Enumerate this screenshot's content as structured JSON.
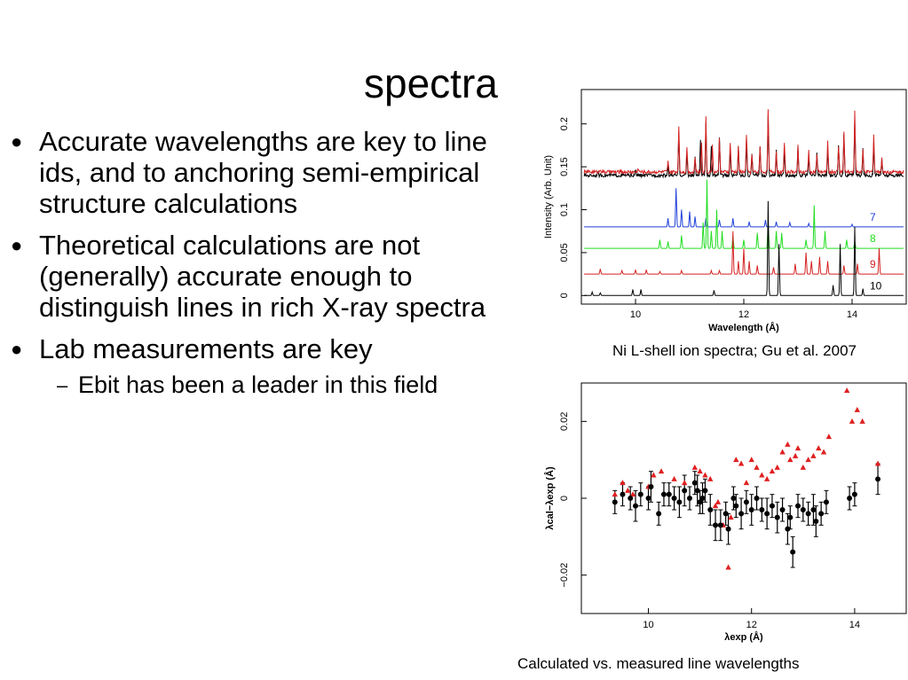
{
  "slide": {
    "title": "spectra",
    "bullets": [
      {
        "text": "Accurate wavelengths are key to line ids, and to anchoring semi-empirical structure calculations"
      },
      {
        "text": "Theoretical calculations are not (generally) accurate enough to distinguish lines in rich X-ray spectra"
      },
      {
        "text": "Lab measurements are key"
      }
    ],
    "sub_bullets": [
      {
        "text": "Ebit has been a leader in this field"
      }
    ],
    "captions": {
      "top": "Ni L-shell ion spectra; Gu et al. 2007",
      "bottom": "Calculated vs. measured line wavelengths"
    }
  },
  "chart_data": [
    {
      "type": "line",
      "xlabel": "Wavelength (Å)",
      "ylabel": "Intensity (Arb. Unit)",
      "xlim": [
        9,
        15
      ],
      "ylim": [
        -0.01,
        0.24
      ],
      "xticks": [
        10,
        12,
        14
      ],
      "yticks": [
        0,
        0.05,
        0.1,
        0.15,
        0.2
      ],
      "series": [
        {
          "name": "7",
          "color": "#1f3fd8",
          "baseline": 0.08,
          "peaks": [
            [
              10.6,
              0.01
            ],
            [
              10.75,
              0.045
            ],
            [
              10.85,
              0.02
            ],
            [
              11.0,
              0.018
            ],
            [
              11.1,
              0.012
            ],
            [
              11.3,
              0.01
            ],
            [
              11.55,
              0.008
            ],
            [
              11.8,
              0.01
            ],
            [
              12.1,
              0.006
            ],
            [
              12.4,
              0.008
            ],
            [
              12.6,
              0.006
            ],
            [
              12.85,
              0.005
            ],
            [
              13.2,
              0.004
            ],
            [
              14.0,
              0.003
            ]
          ]
        },
        {
          "name": "8",
          "color": "#22dd22",
          "baseline": 0.055,
          "peaks": [
            [
              10.45,
              0.01
            ],
            [
              10.6,
              0.008
            ],
            [
              10.85,
              0.015
            ],
            [
              11.25,
              0.03
            ],
            [
              11.32,
              0.08
            ],
            [
              11.4,
              0.02
            ],
            [
              11.5,
              0.045
            ],
            [
              11.6,
              0.02
            ],
            [
              11.8,
              0.015
            ],
            [
              12.0,
              0.01
            ],
            [
              12.25,
              0.018
            ],
            [
              12.45,
              0.03
            ],
            [
              12.6,
              0.02
            ],
            [
              12.7,
              0.018
            ],
            [
              13.15,
              0.01
            ],
            [
              13.3,
              0.05
            ],
            [
              13.5,
              0.02
            ],
            [
              13.9,
              0.01
            ],
            [
              14.05,
              0.008
            ]
          ]
        },
        {
          "name": "9",
          "color": "#d42222",
          "baseline": 0.025,
          "peaks": [
            [
              9.35,
              0.006
            ],
            [
              9.75,
              0.004
            ],
            [
              10.0,
              0.005
            ],
            [
              10.2,
              0.005
            ],
            [
              10.45,
              0.003
            ],
            [
              10.85,
              0.004
            ],
            [
              11.4,
              0.004
            ],
            [
              11.55,
              0.004
            ],
            [
              11.8,
              0.05
            ],
            [
              11.9,
              0.015
            ],
            [
              12.0,
              0.03
            ],
            [
              12.1,
              0.015
            ],
            [
              12.25,
              0.01
            ],
            [
              12.55,
              0.008
            ],
            [
              12.95,
              0.012
            ],
            [
              13.15,
              0.025
            ],
            [
              13.25,
              0.015
            ],
            [
              13.4,
              0.02
            ],
            [
              13.55,
              0.015
            ],
            [
              13.85,
              0.01
            ],
            [
              14.1,
              0.012
            ],
            [
              14.5,
              0.03
            ]
          ]
        },
        {
          "name": "10",
          "color": "#000000",
          "baseline": 0.0,
          "peaks": [
            [
              9.2,
              0.004
            ],
            [
              9.35,
              0.003
            ],
            [
              9.95,
              0.007
            ],
            [
              10.1,
              0.007
            ],
            [
              11.45,
              0.006
            ],
            [
              12.45,
              0.11
            ],
            [
              12.65,
              0.06
            ],
            [
              13.65,
              0.012
            ],
            [
              13.78,
              0.06
            ],
            [
              14.05,
              0.08
            ],
            [
              14.2,
              0.008
            ]
          ]
        },
        {
          "name": "",
          "color": "#000000",
          "baseline": 0.14,
          "peaks": [
            [
              9.3,
              0.004
            ],
            [
              10.0,
              0.006
            ],
            [
              10.6,
              0.012
            ],
            [
              10.8,
              0.05
            ],
            [
              10.95,
              0.025
            ],
            [
              11.1,
              0.02
            ],
            [
              11.2,
              0.04
            ],
            [
              11.3,
              0.06
            ],
            [
              11.4,
              0.035
            ],
            [
              11.55,
              0.045
            ],
            [
              11.75,
              0.03
            ],
            [
              11.9,
              0.035
            ],
            [
              12.05,
              0.04
            ],
            [
              12.15,
              0.025
            ],
            [
              12.3,
              0.035
            ],
            [
              12.45,
              0.07
            ],
            [
              12.6,
              0.03
            ],
            [
              12.75,
              0.03
            ],
            [
              13.0,
              0.035
            ],
            [
              13.2,
              0.02
            ],
            [
              13.35,
              0.025
            ],
            [
              13.55,
              0.03
            ],
            [
              13.75,
              0.035
            ],
            [
              13.85,
              0.05
            ],
            [
              14.05,
              0.065
            ],
            [
              14.2,
              0.03
            ],
            [
              14.4,
              0.04
            ],
            [
              14.55,
              0.02
            ]
          ]
        },
        {
          "name": "",
          "color": "#d42222",
          "baseline": 0.144,
          "peaks": [
            [
              9.35,
              0.004
            ],
            [
              10.05,
              0.005
            ],
            [
              10.6,
              0.012
            ],
            [
              10.8,
              0.055
            ],
            [
              10.95,
              0.03
            ],
            [
              11.1,
              0.018
            ],
            [
              11.22,
              0.035
            ],
            [
              11.3,
              0.065
            ],
            [
              11.42,
              0.03
            ],
            [
              11.55,
              0.04
            ],
            [
              11.75,
              0.035
            ],
            [
              11.9,
              0.03
            ],
            [
              12.05,
              0.045
            ],
            [
              12.15,
              0.02
            ],
            [
              12.3,
              0.03
            ],
            [
              12.45,
              0.075
            ],
            [
              12.6,
              0.025
            ],
            [
              12.75,
              0.035
            ],
            [
              13.0,
              0.03
            ],
            [
              13.2,
              0.025
            ],
            [
              13.35,
              0.02
            ],
            [
              13.55,
              0.035
            ],
            [
              13.75,
              0.03
            ],
            [
              13.85,
              0.045
            ],
            [
              14.05,
              0.07
            ],
            [
              14.2,
              0.025
            ],
            [
              14.4,
              0.045
            ],
            [
              14.55,
              0.015
            ]
          ]
        }
      ]
    },
    {
      "type": "scatter",
      "xlabel": "λexp (Å)",
      "ylabel": "λcal−λexp (Å)",
      "xlim": [
        8.7,
        15.0
      ],
      "ylim": [
        -0.03,
        0.03
      ],
      "xticks": [
        10,
        12,
        14
      ],
      "yticks": [
        -0.02,
        0,
        0.02
      ],
      "series": [
        {
          "name": "",
          "marker": "circle-errorbar",
          "color": "#000000",
          "points": [
            [
              9.35,
              -0.001,
              0.003
            ],
            [
              9.5,
              0.001,
              0.003
            ],
            [
              9.65,
              0.0,
              0.003
            ],
            [
              9.75,
              -0.002,
              0.004
            ],
            [
              9.85,
              0.001,
              0.003
            ],
            [
              10.0,
              0.0,
              0.003
            ],
            [
              10.05,
              0.003,
              0.004
            ],
            [
              10.2,
              -0.004,
              0.003
            ],
            [
              10.3,
              0.001,
              0.003
            ],
            [
              10.4,
              0.001,
              0.003
            ],
            [
              10.5,
              0.0,
              0.003
            ],
            [
              10.6,
              -0.001,
              0.004
            ],
            [
              10.7,
              0.002,
              0.004
            ],
            [
              10.8,
              0.0,
              0.003
            ],
            [
              10.9,
              0.004,
              0.003
            ],
            [
              10.95,
              0.002,
              0.004
            ],
            [
              11.0,
              -0.001,
              0.003
            ],
            [
              11.05,
              0.0,
              0.004
            ],
            [
              11.1,
              0.002,
              0.003
            ],
            [
              11.2,
              -0.003,
              0.004
            ],
            [
              11.3,
              -0.007,
              0.004
            ],
            [
              11.4,
              -0.007,
              0.004
            ],
            [
              11.5,
              -0.004,
              0.003
            ],
            [
              11.55,
              -0.008,
              0.004
            ],
            [
              11.65,
              0.0,
              0.003
            ],
            [
              11.7,
              -0.002,
              0.003
            ],
            [
              11.8,
              -0.004,
              0.004
            ],
            [
              11.9,
              -0.001,
              0.003
            ],
            [
              12.0,
              -0.003,
              0.004
            ],
            [
              12.1,
              0.0,
              0.003
            ],
            [
              12.2,
              -0.003,
              0.003
            ],
            [
              12.3,
              -0.004,
              0.004
            ],
            [
              12.4,
              -0.002,
              0.003
            ],
            [
              12.5,
              -0.005,
              0.004
            ],
            [
              12.6,
              -0.003,
              0.003
            ],
            [
              12.7,
              -0.008,
              0.004
            ],
            [
              12.75,
              -0.005,
              0.003
            ],
            [
              12.8,
              -0.014,
              0.004
            ],
            [
              12.9,
              -0.002,
              0.003
            ],
            [
              13.0,
              -0.003,
              0.003
            ],
            [
              13.1,
              -0.004,
              0.003
            ],
            [
              13.2,
              -0.003,
              0.004
            ],
            [
              13.25,
              -0.006,
              0.004
            ],
            [
              13.35,
              -0.004,
              0.003
            ],
            [
              13.45,
              -0.001,
              0.003
            ],
            [
              13.9,
              0.0,
              0.003
            ],
            [
              14.0,
              0.001,
              0.003
            ],
            [
              14.45,
              0.005,
              0.004
            ]
          ]
        },
        {
          "name": "",
          "marker": "triangle",
          "color": "#e02020",
          "points": [
            [
              9.35,
              0.001
            ],
            [
              9.5,
              0.004
            ],
            [
              9.6,
              0.002
            ],
            [
              9.7,
              0.001
            ],
            [
              10.0,
              0.003
            ],
            [
              10.1,
              0.006
            ],
            [
              10.25,
              0.007
            ],
            [
              10.5,
              0.005
            ],
            [
              10.7,
              0.004
            ],
            [
              10.9,
              0.008
            ],
            [
              11.0,
              0.007
            ],
            [
              11.1,
              0.006
            ],
            [
              11.2,
              0.005
            ],
            [
              11.3,
              -0.002
            ],
            [
              11.35,
              -0.001
            ],
            [
              11.45,
              -0.007
            ],
            [
              11.55,
              -0.018
            ],
            [
              11.6,
              -0.005
            ],
            [
              11.7,
              0.01
            ],
            [
              11.8,
              0.009
            ],
            [
              11.9,
              0.004
            ],
            [
              12.0,
              0.01
            ],
            [
              12.1,
              0.008
            ],
            [
              12.2,
              0.006
            ],
            [
              12.3,
              0.005
            ],
            [
              12.4,
              0.007
            ],
            [
              12.5,
              0.008
            ],
            [
              12.6,
              0.012
            ],
            [
              12.7,
              0.014
            ],
            [
              12.75,
              0.01
            ],
            [
              12.85,
              0.011
            ],
            [
              12.9,
              0.013
            ],
            [
              13.0,
              0.008
            ],
            [
              13.1,
              0.01
            ],
            [
              13.2,
              0.011
            ],
            [
              13.3,
              0.013
            ],
            [
              13.4,
              0.012
            ],
            [
              13.5,
              0.016
            ],
            [
              13.85,
              0.028
            ],
            [
              13.95,
              0.02
            ],
            [
              14.05,
              0.023
            ],
            [
              14.15,
              0.02
            ],
            [
              14.45,
              0.009
            ]
          ]
        }
      ]
    }
  ]
}
